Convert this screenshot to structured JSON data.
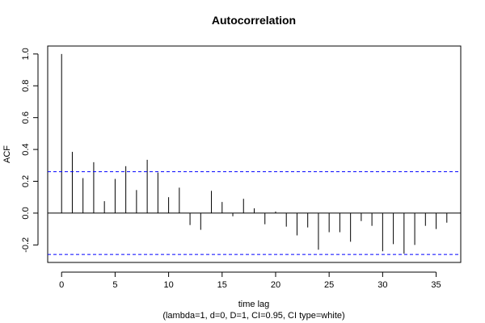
{
  "chart_data": {
    "type": "bar",
    "title": "Autocorrelation",
    "xlabel": "time lag",
    "subtitle": "(lambda=1, d=0, D=1, CI=0.95, CI type=white)",
    "ylabel": "ACF",
    "xlim": [
      -1.3,
      37.3
    ],
    "ylim": [
      -0.31,
      1.05
    ],
    "x_ticks": [
      0,
      5,
      10,
      15,
      20,
      25,
      30,
      35
    ],
    "y_ticks": [
      -0.2,
      0.0,
      0.2,
      0.4,
      0.6,
      0.8,
      1.0
    ],
    "y_tick_labels": [
      "-0.2",
      "0.0",
      "0.2",
      "0.4",
      "0.6",
      "0.8",
      "1.0"
    ],
    "confidence_limits": [
      0.26,
      -0.26
    ],
    "confidence_color": "#0000ff",
    "grid": false,
    "lags": [
      0,
      1,
      2,
      3,
      4,
      5,
      6,
      7,
      8,
      9,
      10,
      11,
      12,
      13,
      14,
      15,
      16,
      17,
      18,
      19,
      20,
      21,
      22,
      23,
      24,
      25,
      26,
      27,
      28,
      29,
      30,
      31,
      32,
      33,
      34,
      35,
      36
    ],
    "values": [
      1.0,
      0.385,
      0.22,
      0.32,
      0.075,
      0.215,
      0.295,
      0.145,
      0.335,
      0.255,
      0.1,
      0.16,
      -0.075,
      -0.105,
      0.14,
      0.07,
      -0.02,
      0.09,
      0.03,
      -0.07,
      0.01,
      -0.085,
      -0.14,
      -0.09,
      -0.23,
      -0.12,
      -0.12,
      -0.18,
      -0.05,
      -0.08,
      -0.24,
      -0.195,
      -0.255,
      -0.2,
      -0.08,
      -0.1,
      -0.06
    ]
  }
}
